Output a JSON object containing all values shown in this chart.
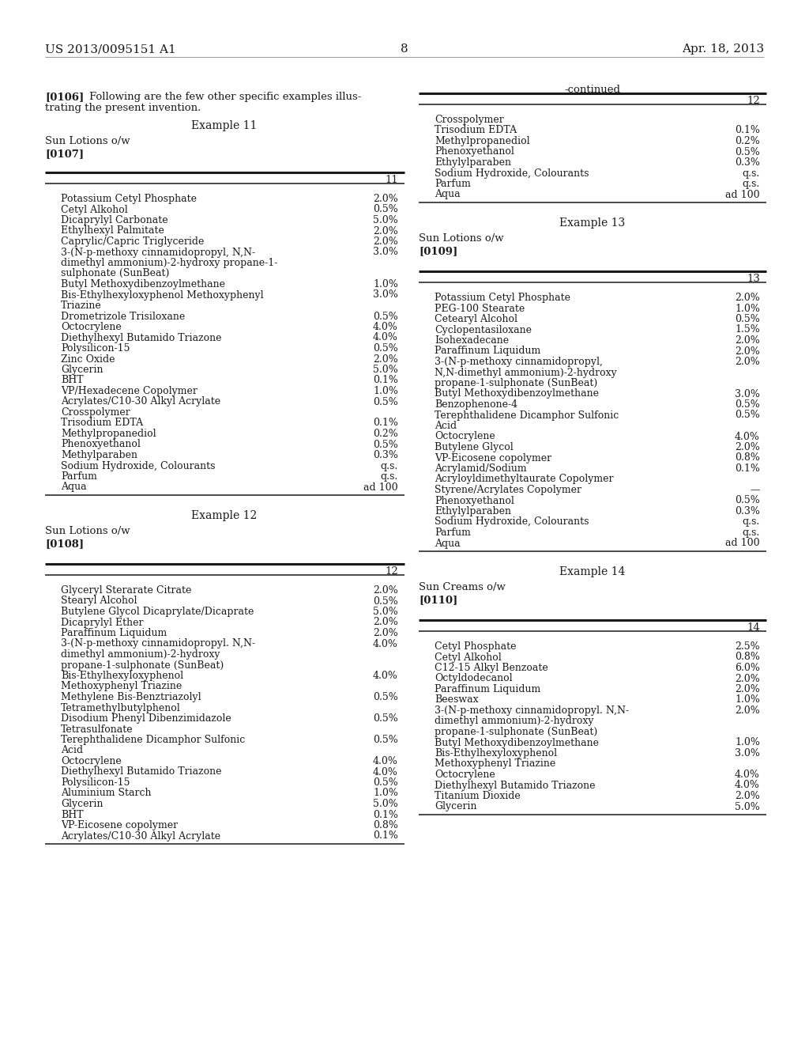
{
  "background_color": "#ffffff",
  "header_left": "US 2013/0095151 A1",
  "header_right": "Apr. 18, 2013",
  "page_number": "8",
  "left_column": {
    "example_title": "Example 11",
    "subtitle": "Sun Lotions o/w",
    "ref": "[0107]",
    "table_number": "11",
    "rows": [
      [
        "Potassium Cetyl Phosphate",
        "2.0%"
      ],
      [
        "Cetyl Alkohol",
        "0.5%"
      ],
      [
        "Dicaprylyl Carbonate",
        "5.0%"
      ],
      [
        "Ethylhexyl Palmitate",
        "2.0%"
      ],
      [
        "Caprylic/Capric Triglyceride",
        "2.0%"
      ],
      [
        "3-(N-p-methoxy cinnamidopropyl, N,N-\ndimethyl ammonium)-2-hydroxy propane-1-\nsulphonate (SunBeat)",
        "3.0%"
      ],
      [
        "Butyl Methoxydibenzoylmethane",
        "1.0%"
      ],
      [
        "Bis-Ethylhexyloxyphenol Methoxyphenyl\nTriazine",
        "3.0%"
      ],
      [
        "Drometrizole Trisiloxane",
        "0.5%"
      ],
      [
        "Octocrylene",
        "4.0%"
      ],
      [
        "Diethylhexyl Butamido Triazone",
        "4.0%"
      ],
      [
        "Polysilicon-15",
        "0.5%"
      ],
      [
        "Zinc Oxide",
        "2.0%"
      ],
      [
        "Glycerin",
        "5.0%"
      ],
      [
        "BHT",
        "0.1%"
      ],
      [
        "VP/Hexadecene Copolymer",
        "1.0%"
      ],
      [
        "Acrylates/C10-30 Alkyl Acrylate\nCrosspolymer",
        "0.5%"
      ],
      [
        "Trisodium EDTA",
        "0.1%"
      ],
      [
        "Methylpropanediol",
        "0.2%"
      ],
      [
        "Phenoxyethanol",
        "0.5%"
      ],
      [
        "Methylparaben",
        "0.3%"
      ],
      [
        "Sodium Hydroxide, Colourants",
        "q.s."
      ],
      [
        "Parfum",
        "q.s."
      ],
      [
        "Aqua",
        "ad 100"
      ]
    ],
    "example2_title": "Example 12",
    "subtitle2": "Sun Lotions o/w",
    "ref2": "[0108]",
    "table_number2": "12",
    "rows2": [
      [
        "Glyceryl Sterarate Citrate",
        "2.0%"
      ],
      [
        "Stearyl Alcohol",
        "0.5%"
      ],
      [
        "Butylene Glycol Dicaprylate/Dicaprate",
        "5.0%"
      ],
      [
        "Dicaprylyl Ether",
        "2.0%"
      ],
      [
        "Paraffinum Liquidum",
        "2.0%"
      ],
      [
        "3-(N-p-methoxy cinnamidopropyl. N,N-\ndimethyl ammonium)-2-hydroxy\npropane-1-sulphonate (SunBeat)",
        "4.0%"
      ],
      [
        "Bis-Ethylhexyloxyphenol",
        "4.0%"
      ],
      [
        "Methoxyphenyl Triazine",
        ""
      ],
      [
        "Methylene Bis-Benztriazolyl\nTetramethylbutylphenol",
        "0.5%"
      ],
      [
        "Disodium Phenyl Dibenzimidazole\nTetrasulfonate",
        "0.5%"
      ],
      [
        "Terephthalidene Dicamphor Sulfonic\nAcid",
        "0.5%"
      ],
      [
        "Octocrylene",
        "4.0%"
      ],
      [
        "Diethylhexyl Butamido Triazone",
        "4.0%"
      ],
      [
        "Polysilicon-15",
        "0.5%"
      ],
      [
        "Aluminium Starch",
        "1.0%"
      ],
      [
        "Glycerin",
        "5.0%"
      ],
      [
        "BHT",
        "0.1%"
      ],
      [
        "VP-Eicosene copolymer",
        "0.8%"
      ],
      [
        "Acrylates/C10-30 Alkyl Acrylate",
        "0.1%"
      ]
    ]
  },
  "right_column": {
    "continued_label": "-continued",
    "table_number": "12",
    "rows_cont": [
      [
        "Crosspolymer",
        ""
      ],
      [
        "Trisodium EDTA",
        "0.1%"
      ],
      [
        "Methylpropanediol",
        "0.2%"
      ],
      [
        "Phenoxyethanol",
        "0.5%"
      ],
      [
        "Ethylylparaben",
        "0.3%"
      ],
      [
        "Sodium Hydroxide, Colourants",
        "q.s."
      ],
      [
        "Parfum",
        "q.s."
      ],
      [
        "Aqua",
        "ad 100"
      ]
    ],
    "example3_title": "Example 13",
    "subtitle3": "Sun Lotions o/w",
    "ref3": "[0109]",
    "table_number3": "13",
    "rows3": [
      [
        "Potassium Cetyl Phosphate",
        "2.0%"
      ],
      [
        "PEG-100 Stearate",
        "1.0%"
      ],
      [
        "Cetearyl Alcohol",
        "0.5%"
      ],
      [
        "Cyclopentasiloxane",
        "1.5%"
      ],
      [
        "Isohexadecane",
        "2.0%"
      ],
      [
        "Paraffinum Liquidum",
        "2.0%"
      ],
      [
        "3-(N-p-methoxy cinnamidopropyl,\nN,N-dimethyl ammonium)-2-hydroxy\npropane-1-sulphonate (SunBeat)",
        "2.0%"
      ],
      [
        "Butyl Methoxydibenzoylmethane",
        "3.0%"
      ],
      [
        "Benzophenone-4",
        "0.5%"
      ],
      [
        "Terephthalidene Dicamphor Sulfonic\nAcid",
        "0.5%"
      ],
      [
        "Octocrylene",
        "4.0%"
      ],
      [
        "Butylene Glycol",
        "2.0%"
      ],
      [
        "VP-Eicosene copolymer",
        "0.8%"
      ],
      [
        "Acrylamid/Sodium\nAcryloyldimethyltaurate Copolymer",
        "0.1%"
      ],
      [
        "Styrene/Acrylates Copolymer",
        "—"
      ],
      [
        "Phenoxyethanol",
        "0.5%"
      ],
      [
        "Ethylylparaben",
        "0.3%"
      ],
      [
        "Sodium Hydroxide, Colourants",
        "q.s."
      ],
      [
        "Parfum",
        "q.s."
      ],
      [
        "Aqua",
        "ad 100"
      ]
    ],
    "example4_title": "Example 14",
    "subtitle4": "Sun Creams o/w",
    "ref4": "[0110]",
    "table_number4": "14",
    "rows4": [
      [
        "Cetyl Phosphate",
        "2.5%"
      ],
      [
        "Cetyl Alkohol",
        "0.8%"
      ],
      [
        "C12-15 Alkyl Benzoate",
        "6.0%"
      ],
      [
        "Octyldodecanol",
        "2.0%"
      ],
      [
        "Paraffinum Liquidum",
        "2.0%"
      ],
      [
        "Beeswax",
        "1.0%"
      ],
      [
        "3-(N-p-methoxy cinnamidopropyl. N,N-\ndimethyl ammonium)-2-hydroxy\npropane-1-sulphonate (SunBeat)",
        "2.0%"
      ],
      [
        "Butyl Methoxydibenzoylmethane",
        "1.0%"
      ],
      [
        "Bis-Ethylhexyloxyphenol",
        "3.0%"
      ],
      [
        "Methoxyphenyl Triazine",
        ""
      ],
      [
        "Octocrylene",
        "4.0%"
      ],
      [
        "Diethylhexyl Butamido Triazone",
        "4.0%"
      ],
      [
        "Titanium Dioxide",
        "2.0%"
      ],
      [
        "Glycerin",
        "5.0%"
      ]
    ]
  }
}
